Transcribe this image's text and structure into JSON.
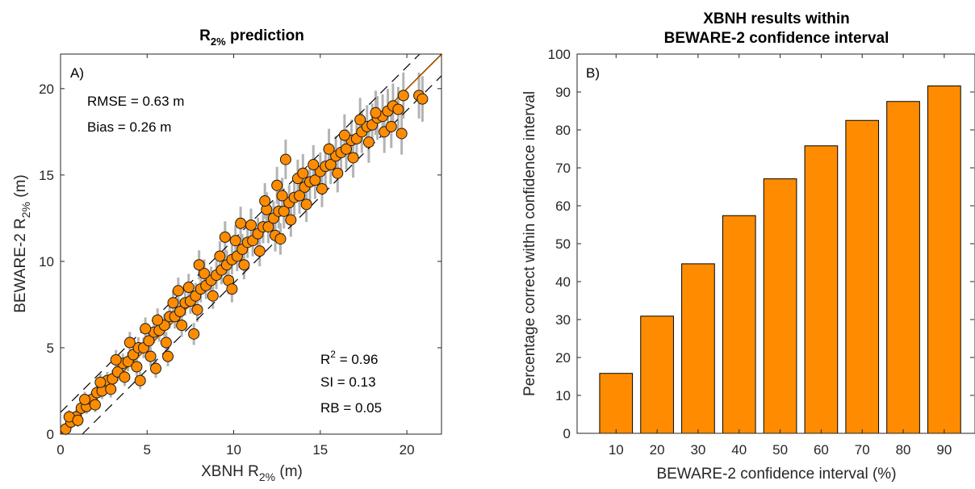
{
  "chart_data": [
    {
      "type": "scatter",
      "panel_label": "A)",
      "title": {
        "main": "R",
        "sub": "2%",
        "tail": " prediction"
      },
      "xlabel": {
        "main": "XBNH R",
        "sub": "2%",
        "tail": " (m)"
      },
      "ylabel": {
        "main": "BEWARE-2 R",
        "sub": "2%",
        "tail": " (m)"
      },
      "xlim": [
        0,
        22
      ],
      "ylim": [
        0,
        22
      ],
      "xticks": [
        "0",
        "5",
        "10",
        "15",
        "20"
      ],
      "yticks": [
        "0",
        "5",
        "10",
        "15",
        "20"
      ],
      "stats_left": [
        "RMSE = 0.63 m",
        "Bias = 0.26 m"
      ],
      "stats_right": {
        "r2_label": "R",
        "r2_sup": "2",
        "r2_value": " = 0.96",
        "si": "SI = 0.13",
        "rb": "RB = 0.05"
      },
      "reference_lines": {
        "one_to_one": true,
        "dashed_offset_m": 1.26
      },
      "points": [
        [
          0.3,
          0.3
        ],
        [
          0.6,
          0.7
        ],
        [
          0.9,
          1.0
        ],
        [
          1.2,
          1.5
        ],
        [
          1.5,
          1.6
        ],
        [
          1.8,
          2.0
        ],
        [
          2.1,
          2.4
        ],
        [
          2.4,
          2.5
        ],
        [
          2.7,
          3.1
        ],
        [
          3.0,
          3.2
        ],
        [
          3.3,
          3.6
        ],
        [
          3.6,
          4.1
        ],
        [
          3.9,
          4.2
        ],
        [
          4.2,
          4.6
        ],
        [
          4.5,
          5.0
        ],
        [
          4.8,
          5.0
        ],
        [
          5.1,
          5.4
        ],
        [
          5.4,
          5.9
        ],
        [
          5.7,
          6.0
        ],
        [
          6.0,
          6.3
        ],
        [
          6.3,
          6.8
        ],
        [
          6.6,
          6.8
        ],
        [
          6.9,
          7.1
        ],
        [
          7.2,
          7.6
        ],
        [
          7.5,
          7.7
        ],
        [
          7.8,
          8.0
        ],
        [
          8.1,
          8.4
        ],
        [
          8.4,
          8.6
        ],
        [
          8.7,
          8.9
        ],
        [
          9.0,
          9.2
        ],
        [
          9.3,
          9.5
        ],
        [
          9.6,
          9.8
        ],
        [
          9.9,
          10.1
        ],
        [
          10.2,
          10.3
        ],
        [
          10.5,
          10.7
        ],
        [
          10.8,
          11.1
        ],
        [
          11.1,
          11.2
        ],
        [
          11.4,
          11.6
        ],
        [
          11.7,
          12.0
        ],
        [
          12.0,
          12.0
        ],
        [
          12.3,
          12.5
        ],
        [
          12.6,
          12.9
        ],
        [
          12.9,
          12.9
        ],
        [
          13.2,
          13.4
        ],
        [
          13.5,
          13.7
        ],
        [
          13.8,
          13.8
        ],
        [
          14.1,
          14.3
        ],
        [
          14.4,
          14.6
        ],
        [
          14.7,
          14.7
        ],
        [
          15.0,
          15.2
        ],
        [
          15.3,
          15.5
        ],
        [
          15.6,
          15.6
        ],
        [
          15.9,
          16.1
        ],
        [
          16.2,
          16.3
        ],
        [
          16.5,
          16.5
        ],
        [
          16.8,
          17.0
        ],
        [
          17.1,
          17.1
        ],
        [
          17.4,
          17.5
        ],
        [
          17.7,
          17.8
        ],
        [
          18.0,
          17.9
        ],
        [
          18.3,
          18.3
        ],
        [
          18.6,
          18.4
        ],
        [
          18.9,
          18.7
        ],
        [
          19.2,
          19.0
        ],
        [
          19.5,
          18.8
        ],
        [
          19.8,
          19.6
        ],
        [
          20.7,
          19.6
        ],
        [
          20.9,
          19.4
        ],
        [
          0.5,
          1.0
        ],
        [
          1.0,
          0.8
        ],
        [
          1.4,
          2.0
        ],
        [
          2.0,
          1.7
        ],
        [
          2.3,
          3.0
        ],
        [
          2.9,
          2.6
        ],
        [
          3.2,
          4.3
        ],
        [
          3.7,
          3.3
        ],
        [
          4.0,
          5.3
        ],
        [
          4.4,
          3.9
        ],
        [
          4.9,
          6.1
        ],
        [
          5.2,
          4.5
        ],
        [
          5.6,
          6.6
        ],
        [
          6.1,
          5.3
        ],
        [
          6.5,
          7.6
        ],
        [
          7.0,
          6.3
        ],
        [
          7.4,
          8.5
        ],
        [
          7.9,
          7.2
        ],
        [
          8.3,
          9.3
        ],
        [
          8.8,
          8.0
        ],
        [
          9.2,
          10.3
        ],
        [
          9.7,
          8.9
        ],
        [
          10.1,
          11.2
        ],
        [
          10.6,
          9.8
        ],
        [
          11.0,
          12.1
        ],
        [
          11.5,
          10.6
        ],
        [
          11.9,
          13.0
        ],
        [
          12.4,
          11.5
        ],
        [
          12.8,
          13.8
        ],
        [
          13.3,
          12.4
        ],
        [
          13.7,
          14.8
        ],
        [
          14.2,
          13.3
        ],
        [
          14.6,
          15.6
        ],
        [
          15.1,
          14.2
        ],
        [
          15.5,
          16.5
        ],
        [
          16.0,
          15.1
        ],
        [
          16.4,
          17.3
        ],
        [
          16.9,
          16.0
        ],
        [
          17.3,
          18.2
        ],
        [
          17.8,
          16.9
        ],
        [
          18.2,
          18.6
        ],
        [
          18.7,
          17.5
        ],
        [
          19.1,
          17.8
        ],
        [
          19.7,
          17.4
        ],
        [
          13.0,
          15.9
        ],
        [
          12.5,
          14.4
        ],
        [
          14.0,
          15.1
        ],
        [
          9.5,
          11.4
        ],
        [
          8.0,
          9.8
        ],
        [
          6.8,
          8.3
        ],
        [
          10.4,
          12.2
        ],
        [
          11.8,
          13.5
        ],
        [
          7.7,
          5.8
        ],
        [
          6.2,
          4.5
        ],
        [
          9.9,
          8.4
        ],
        [
          5.5,
          3.8
        ],
        [
          12.7,
          11.3
        ],
        [
          4.6,
          3.1
        ]
      ]
    },
    {
      "type": "bar",
      "panel_label": "B)",
      "title": [
        "XBNH results within",
        "BEWARE-2 confidence interval"
      ],
      "xlabel": "BEWARE-2 confidence interval (%)",
      "ylabel": "Percentage correct within confidence interval",
      "categories": [
        "10",
        "20",
        "30",
        "40",
        "50",
        "60",
        "70",
        "80",
        "90"
      ],
      "values": [
        15.8,
        30.9,
        44.7,
        57.4,
        67.1,
        75.8,
        82.5,
        87.5,
        91.6
      ],
      "ylim": [
        0,
        100
      ],
      "yticks": [
        "0",
        "10",
        "20",
        "30",
        "40",
        "50",
        "60",
        "70",
        "80",
        "90",
        "100"
      ],
      "bar_color": "#FF8C00"
    }
  ],
  "colors": {
    "marker": "#FF8C00",
    "errorbar": "#B3B3B3",
    "one_to_one": "#FF8C00"
  }
}
